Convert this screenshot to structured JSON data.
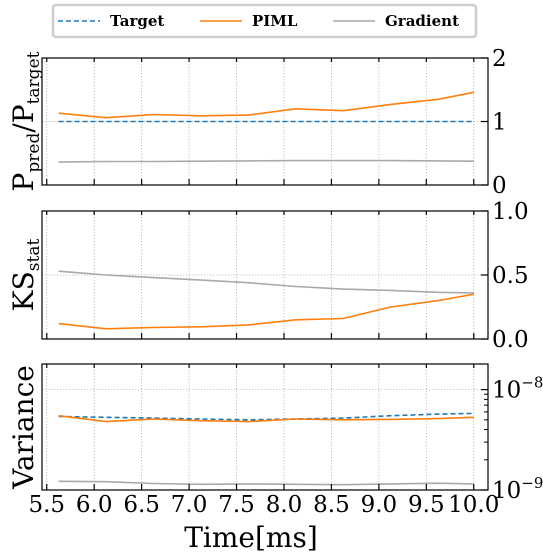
{
  "chart_data": {
    "type": "line",
    "legend": {
      "placement": "top",
      "entries": [
        {
          "name": "Target",
          "color": "#1f77b4",
          "dash": "dashed"
        },
        {
          "name": "PIML",
          "color": "#ff7f0e",
          "dash": "solid"
        },
        {
          "name": "Gradient",
          "color": "#a9a9a9",
          "dash": "solid"
        }
      ]
    },
    "xlabel": "Time[ms]",
    "x_ticks": [
      "5.5",
      "6.0",
      "6.5",
      "7.0",
      "7.5",
      "8.0",
      "8.5",
      "9.0",
      "9.5",
      "10.0"
    ],
    "x_tick_values": [
      5.5,
      6.0,
      6.5,
      7.0,
      7.5,
      8.0,
      8.5,
      9.0,
      9.5,
      10.0
    ],
    "xlim": [
      5.45,
      10.15
    ],
    "x": [
      5.625,
      6.125,
      6.625,
      7.125,
      7.625,
      8.125,
      8.625,
      9.125,
      9.625,
      10.0
    ],
    "grid": true,
    "panels": [
      {
        "id": "ratio",
        "ylabel_main": "P",
        "ylabel_sub_pred": "pred",
        "ylabel_slash": "/P",
        "ylabel_sub_target": "target",
        "scale": "linear",
        "ylim": [
          0,
          2
        ],
        "yticks": [
          0,
          1,
          2
        ],
        "ytick_labels": [
          "0",
          "1",
          "2"
        ],
        "y_side": "right",
        "series": [
          {
            "legend": "Target",
            "values": [
              1.0,
              1.0,
              1.0,
              1.0,
              1.0,
              1.0,
              1.0,
              1.0,
              1.0,
              1.0
            ]
          },
          {
            "legend": "PIML",
            "values": [
              1.13,
              1.06,
              1.11,
              1.09,
              1.1,
              1.2,
              1.17,
              1.27,
              1.35,
              1.46
            ]
          },
          {
            "legend": "Gradient",
            "values": [
              0.36,
              0.37,
              0.37,
              0.375,
              0.38,
              0.385,
              0.385,
              0.385,
              0.38,
              0.375
            ]
          }
        ]
      },
      {
        "id": "ks",
        "ylabel_main": "KS",
        "ylabel_sub": "stat",
        "scale": "linear",
        "ylim": [
          0,
          1
        ],
        "yticks": [
          0,
          0.5,
          1
        ],
        "ytick_labels": [
          "0.0",
          "0.5",
          "1.0"
        ],
        "y_side": "right",
        "series": [
          {
            "legend": "PIML",
            "values": [
              0.12,
              0.08,
              0.09,
              0.095,
              0.11,
              0.15,
              0.16,
              0.25,
              0.3,
              0.35
            ]
          },
          {
            "legend": "Gradient",
            "values": [
              0.53,
              0.5,
              0.48,
              0.46,
              0.44,
              0.41,
              0.39,
              0.38,
              0.365,
              0.36
            ]
          }
        ]
      },
      {
        "id": "variance",
        "ylabel_main": "Variance",
        "scale": "log",
        "ylim": [
          1e-09,
          1.8e-08
        ],
        "yticks": [
          1e-09,
          1e-08
        ],
        "ytick_labels": [
          {
            "base": "10",
            "exp": "−9"
          },
          {
            "base": "10",
            "exp": "−8"
          }
        ],
        "y_side": "right",
        "series": [
          {
            "legend": "Target",
            "values": [
              5.4e-09,
              5.3e-09,
              5.2e-09,
              5.1e-09,
              5e-09,
              5.1e-09,
              5.2e-09,
              5.5e-09,
              5.7e-09,
              5.8e-09
            ]
          },
          {
            "legend": "PIML",
            "values": [
              5.5e-09,
              4.8e-09,
              5.1e-09,
              4.9e-09,
              4.8e-09,
              5.1e-09,
              5e-09,
              5.05e-09,
              5.15e-09,
              5.3e-09
            ]
          },
          {
            "legend": "Gradient",
            "values": [
              1.22e-09,
              1.21e-09,
              1.16e-09,
              1.14e-09,
              1.15e-09,
              1.14e-09,
              1.13e-09,
              1.15e-09,
              1.17e-09,
              1.15e-09
            ]
          }
        ]
      }
    ]
  }
}
